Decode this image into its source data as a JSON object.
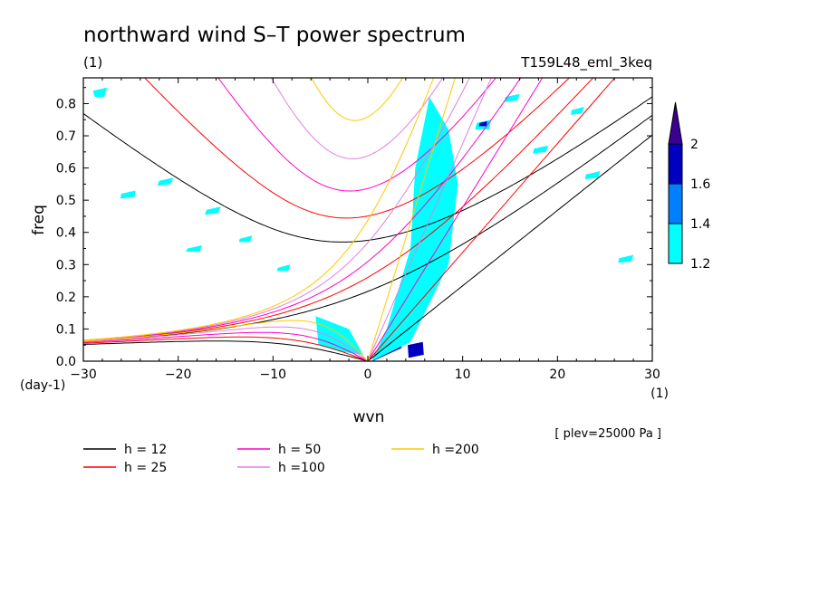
{
  "chart_data": {
    "type": "heatmap",
    "title": "northward wind S–T power spectrum",
    "units_label": "(1)",
    "run_label": "T159L48_eml_3keq",
    "xlabel": "wvn",
    "ylabel": "freq",
    "x_unit_label": "(1)",
    "y_unit_label": "(day-1)",
    "level_note": "[ plev=25000 Pa ]",
    "xlim": [
      -30,
      30
    ],
    "ylim": [
      0,
      0.88
    ],
    "x_ticks": [
      -30,
      -20,
      -10,
      0,
      10,
      20,
      30
    ],
    "y_ticks": [
      0.0,
      0.1,
      0.2,
      0.3,
      0.4,
      0.5,
      0.6,
      0.7,
      0.8
    ],
    "colorbar": {
      "levels": [
        "1.2",
        "1.4",
        "1.6",
        "2"
      ],
      "colors": [
        "#00ffff",
        "#0080ff",
        "#0000c0",
        "#3a0090"
      ]
    },
    "dispersion_curves": [
      {
        "label": "h = 12",
        "h": 12,
        "color": "#000000"
      },
      {
        "label": "h = 25",
        "h": 25,
        "color": "#ff0000"
      },
      {
        "label": "h = 50",
        "h": 50,
        "color": "#ff00c8"
      },
      {
        "label": "h =100",
        "h": 100,
        "color": "#e080e0"
      },
      {
        "label": "h =200",
        "h": 200,
        "color": "#ffc800"
      }
    ],
    "regions": [
      {
        "level": "2",
        "points": [
          [
            0.6,
            0.02
          ],
          [
            3.5,
            0.04
          ],
          [
            5.5,
            0.25
          ],
          [
            6.8,
            0.4
          ],
          [
            6.6,
            0.48
          ],
          [
            5.5,
            0.3
          ],
          [
            4.0,
            0.1
          ],
          [
            1.5,
            0.05
          ]
        ]
      },
      {
        "level": "1.6",
        "points": [
          [
            0.5,
            0.0
          ],
          [
            3.5,
            0.04
          ],
          [
            7.2,
            0.28
          ],
          [
            8.0,
            0.46
          ],
          [
            6.6,
            0.6
          ],
          [
            5.4,
            0.5
          ],
          [
            5.0,
            0.3
          ],
          [
            2.8,
            0.1
          ],
          [
            1.2,
            0.05
          ]
        ]
      },
      {
        "level": "1.2",
        "points": [
          [
            0.4,
            0.0
          ],
          [
            4.5,
            0.06
          ],
          [
            8.5,
            0.3
          ],
          [
            9.5,
            0.55
          ],
          [
            8.5,
            0.72
          ],
          [
            6.5,
            0.82
          ],
          [
            5.0,
            0.6
          ],
          [
            4.5,
            0.35
          ],
          [
            2.0,
            0.1
          ]
        ]
      },
      {
        "level": "1.6",
        "points": [
          [
            -5.0,
            0.13
          ],
          [
            -2.5,
            0.1
          ],
          [
            -1.0,
            0.03
          ],
          [
            -2.5,
            0.04
          ],
          [
            -4.8,
            0.06
          ]
        ]
      },
      {
        "level": "1.2",
        "points": [
          [
            -5.5,
            0.14
          ],
          [
            -2.0,
            0.1
          ],
          [
            -0.5,
            0.02
          ],
          [
            -3.0,
            0.03
          ],
          [
            -5.2,
            0.05
          ]
        ]
      },
      {
        "level": "1.6",
        "points": [
          [
            4.2,
            0.05
          ],
          [
            5.8,
            0.06
          ],
          [
            5.9,
            0.02
          ],
          [
            4.3,
            0.01
          ]
        ]
      },
      {
        "level": "1.2",
        "points": [
          [
            -29,
            0.84
          ],
          [
            -27.5,
            0.85
          ],
          [
            -27.8,
            0.82
          ],
          [
            -28.8,
            0.82
          ]
        ]
      },
      {
        "level": "1.2",
        "points": [
          [
            -22,
            0.56
          ],
          [
            -20.5,
            0.57
          ],
          [
            -20.8,
            0.55
          ],
          [
            -22.2,
            0.545
          ]
        ]
      },
      {
        "level": "1.2",
        "points": [
          [
            -17,
            0.47
          ],
          [
            -15.5,
            0.48
          ],
          [
            -15.8,
            0.46
          ],
          [
            -17.2,
            0.455
          ]
        ]
      },
      {
        "level": "1.2",
        "points": [
          [
            -13.5,
            0.38
          ],
          [
            -12.2,
            0.39
          ],
          [
            -12.4,
            0.37
          ],
          [
            -13.6,
            0.37
          ]
        ]
      },
      {
        "level": "1.2",
        "points": [
          [
            -26,
            0.52
          ],
          [
            -24.5,
            0.53
          ],
          [
            -24.6,
            0.51
          ],
          [
            -26.1,
            0.505
          ]
        ]
      },
      {
        "level": "1.2",
        "points": [
          [
            -9.5,
            0.29
          ],
          [
            -8.2,
            0.3
          ],
          [
            -8.4,
            0.28
          ],
          [
            -9.6,
            0.28
          ]
        ]
      },
      {
        "level": "1.2",
        "points": [
          [
            17.5,
            0.66
          ],
          [
            19.0,
            0.67
          ],
          [
            18.8,
            0.65
          ],
          [
            17.4,
            0.645
          ]
        ]
      },
      {
        "level": "1.2",
        "points": [
          [
            23,
            0.58
          ],
          [
            24.5,
            0.59
          ],
          [
            24.3,
            0.57
          ],
          [
            22.9,
            0.565
          ]
        ]
      },
      {
        "level": "1.2",
        "points": [
          [
            26.5,
            0.32
          ],
          [
            28.0,
            0.33
          ],
          [
            27.8,
            0.31
          ],
          [
            26.4,
            0.305
          ]
        ]
      },
      {
        "level": "1.2",
        "points": [
          [
            11.5,
            0.74
          ],
          [
            13.0,
            0.75
          ],
          [
            12.8,
            0.72
          ],
          [
            11.3,
            0.72
          ]
        ]
      },
      {
        "level": "1.6",
        "points": [
          [
            11.8,
            0.74
          ],
          [
            12.6,
            0.745
          ],
          [
            12.5,
            0.73
          ],
          [
            11.7,
            0.73
          ]
        ]
      },
      {
        "level": "1.2",
        "points": [
          [
            14.5,
            0.82
          ],
          [
            16.0,
            0.83
          ],
          [
            15.8,
            0.81
          ],
          [
            14.4,
            0.805
          ]
        ]
      },
      {
        "level": "1.2",
        "points": [
          [
            -19,
            0.35
          ],
          [
            -17.5,
            0.36
          ],
          [
            -17.7,
            0.34
          ],
          [
            -19.2,
            0.34
          ]
        ]
      },
      {
        "level": "1.2",
        "points": [
          [
            21.5,
            0.78
          ],
          [
            22.8,
            0.79
          ],
          [
            22.6,
            0.77
          ],
          [
            21.4,
            0.765
          ]
        ]
      }
    ]
  }
}
